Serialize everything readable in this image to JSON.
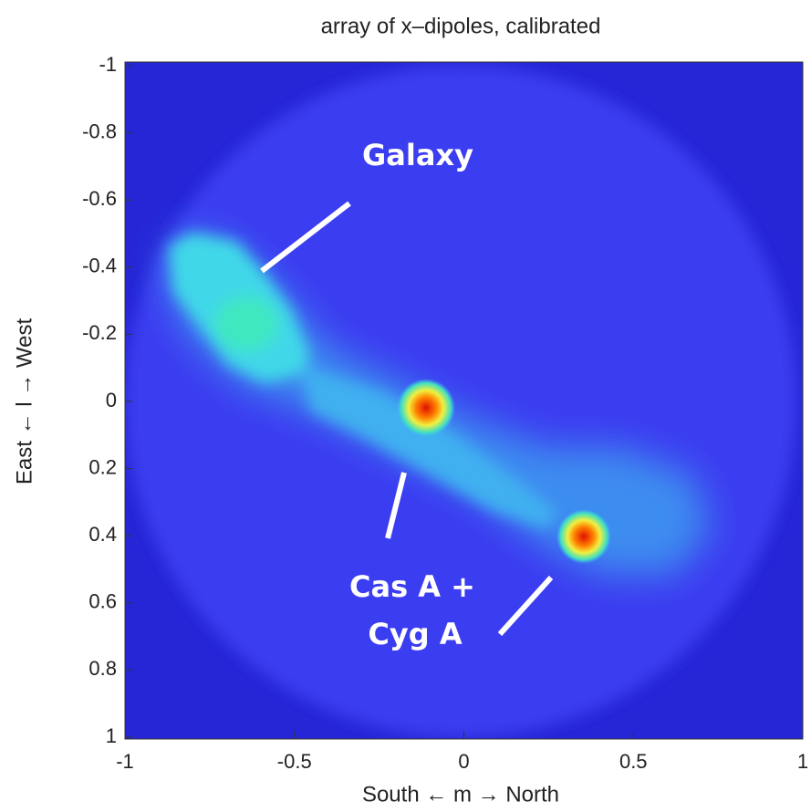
{
  "chart_data": {
    "type": "heatmap",
    "title": "array of x–dipoles, calibrated",
    "xlabel": "South ← m → North",
    "ylabel": "East ← l → West",
    "xlim": [
      -1,
      1
    ],
    "xticks": [
      -1,
      -0.5,
      0,
      0.5,
      1
    ],
    "ylim": [
      1,
      -1
    ],
    "yticks": [
      -1,
      -0.8,
      -0.6,
      -0.4,
      -0.2,
      0,
      0.2,
      0.4,
      0.6,
      0.8,
      1
    ],
    "annotations": [
      "Galaxy",
      "Cas A +",
      "Cyg A"
    ]
  }
}
